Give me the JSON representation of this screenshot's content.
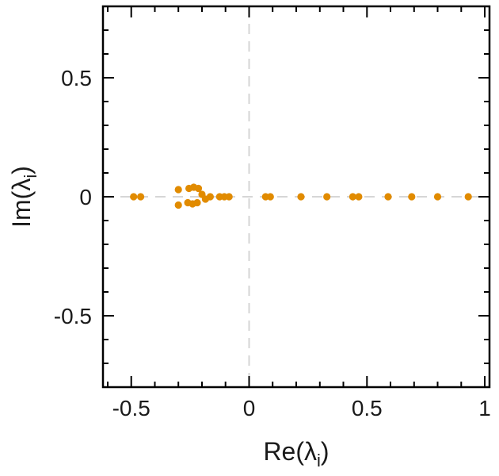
{
  "figure": {
    "background": "#ffffff"
  },
  "chart_data": {
    "type": "scatter",
    "title": "",
    "xlabel": "Re(λ_i)",
    "ylabel": "Im(λ_i)",
    "xlim": [
      -0.62,
      1.02
    ],
    "ylim": [
      -0.8,
      0.8
    ],
    "xticks": [
      -0.5,
      0,
      0.5,
      1
    ],
    "xtick_labels": [
      "-0.5",
      "0",
      "0.5",
      "1"
    ],
    "yticks": [
      -0.5,
      0,
      0.5
    ],
    "ytick_labels": [
      "-0.5",
      "0",
      "0.5"
    ],
    "minor_tick_step": 0.1,
    "grid": false,
    "legend": "none",
    "frame_color": "#000000",
    "reference_lines": {
      "vertical_x": 0,
      "horizontal_y": 0,
      "style": "dashed",
      "color": "#d6d6d6"
    },
    "marker": {
      "shape": "circle",
      "color": "#e18b00",
      "radius_px": 4.6
    },
    "points": [
      [
        -0.49,
        0.0
      ],
      [
        -0.46,
        0.0
      ],
      [
        -0.3,
        0.03
      ],
      [
        -0.3,
        -0.035
      ],
      [
        -0.255,
        0.035
      ],
      [
        -0.235,
        0.04
      ],
      [
        -0.215,
        0.035
      ],
      [
        -0.26,
        -0.025
      ],
      [
        -0.24,
        -0.03
      ],
      [
        -0.22,
        -0.025
      ],
      [
        -0.2,
        0.01
      ],
      [
        -0.185,
        -0.01
      ],
      [
        -0.165,
        0.0
      ],
      [
        -0.125,
        0.0
      ],
      [
        -0.105,
        0.0
      ],
      [
        -0.085,
        0.0
      ],
      [
        0.07,
        0.0
      ],
      [
        0.09,
        0.0
      ],
      [
        0.22,
        0.0
      ],
      [
        0.33,
        0.0
      ],
      [
        0.44,
        0.0
      ],
      [
        0.465,
        0.0
      ],
      [
        0.59,
        0.0
      ],
      [
        0.69,
        0.0
      ],
      [
        0.8,
        0.0
      ],
      [
        0.93,
        0.0
      ]
    ]
  }
}
